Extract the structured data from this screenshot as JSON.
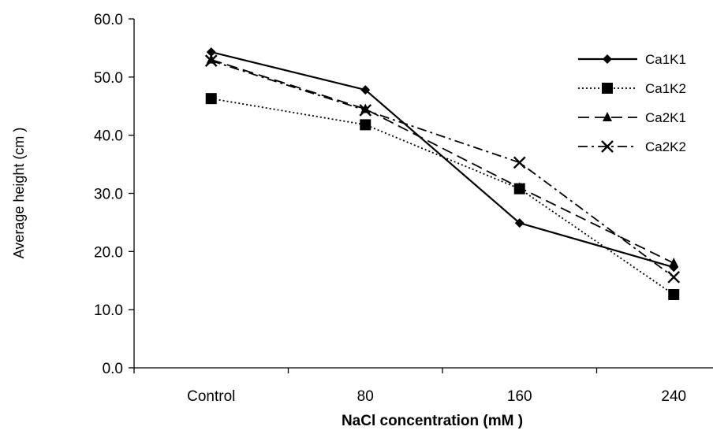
{
  "chart_data": {
    "type": "line",
    "title": "",
    "xlabel": "NaCl concentration (mM )",
    "ylabel": "Average height (cm )",
    "categories": [
      "Control",
      "80",
      "160",
      "240"
    ],
    "ylim": [
      0,
      60
    ],
    "yticks": [
      "0.0",
      "10.0",
      "20.0",
      "30.0",
      "40.0",
      "50.0",
      "60.0"
    ],
    "grid": false,
    "legend_position": "top-right",
    "series": [
      {
        "name": "Ca1K1",
        "values": [
          54.3,
          47.8,
          24.9,
          17.3
        ],
        "line": "solid",
        "marker": "diamond",
        "color": "#000000"
      },
      {
        "name": "Ca1K2",
        "values": [
          46.3,
          41.8,
          30.8,
          12.6
        ],
        "line": "dotted",
        "marker": "square",
        "color": "#000000"
      },
      {
        "name": "Ca2K1",
        "values": [
          53.0,
          44.5,
          31.0,
          18.0
        ],
        "line": "dashed",
        "marker": "triangle",
        "color": "#000000"
      },
      {
        "name": "Ca2K2",
        "values": [
          52.8,
          44.3,
          35.3,
          15.6
        ],
        "line": "dashdot",
        "marker": "x",
        "color": "#000000"
      }
    ]
  }
}
